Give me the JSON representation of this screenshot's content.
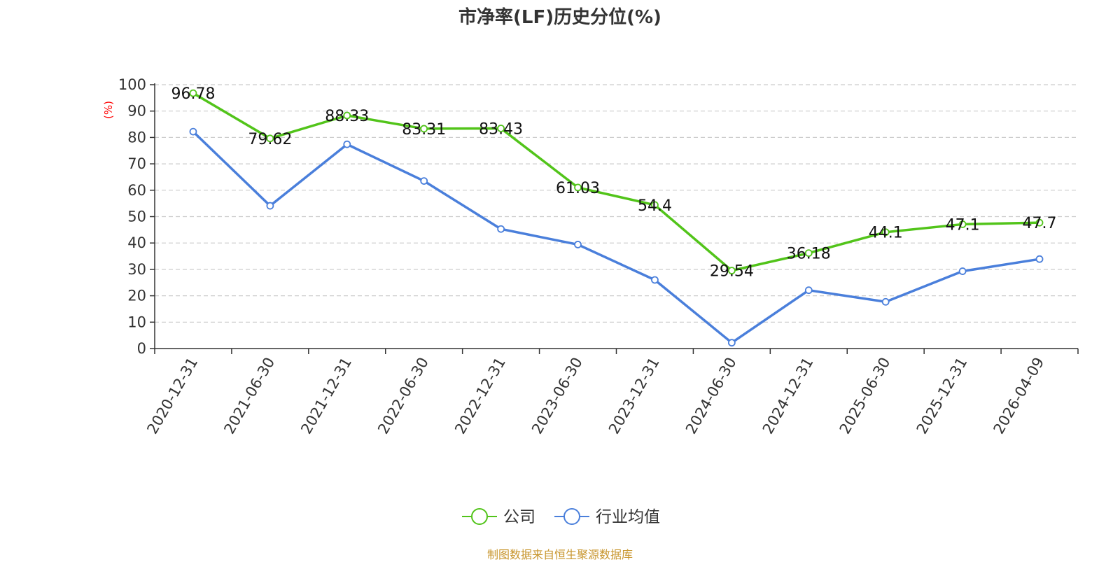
{
  "chart_data": {
    "type": "line",
    "title": "市净率(LF)历史分位(%)",
    "ylabel": "(%)",
    "xlabel": "",
    "ylim": [
      0,
      100
    ],
    "yticks": [
      0,
      10,
      20,
      30,
      40,
      50,
      60,
      70,
      80,
      90,
      100
    ],
    "grid": true,
    "legend_position": "bottom-center",
    "categories": [
      "2020-12-31",
      "2021-06-30",
      "2021-12-31",
      "2022-06-30",
      "2022-12-31",
      "2023-06-30",
      "2023-12-31",
      "2024-06-30",
      "2024-12-31",
      "2025-06-30",
      "2025-12-31",
      "2026-04-09"
    ],
    "series": [
      {
        "name": "公司",
        "color": "#52c41a",
        "values": [
          96.78,
          79.62,
          88.33,
          83.31,
          83.43,
          61.03,
          54.4,
          29.54,
          36.18,
          44.1,
          47.1,
          47.7
        ],
        "data_labels": [
          "96.78",
          "79.62",
          "88.33",
          "83.31",
          "83.43",
          "61.03",
          "54.4",
          "29.54",
          "36.18",
          "44.1",
          "47.1",
          "47.7"
        ]
      },
      {
        "name": "行业均值",
        "color": "#4a7fdb",
        "values": [
          82.2,
          54.1,
          77.4,
          63.5,
          45.3,
          39.4,
          26.0,
          2.2,
          22.1,
          17.7,
          29.3,
          33.9
        ]
      }
    ]
  },
  "source_note": "制图数据来自恒生聚源数据库",
  "colors": {
    "title": "#333333",
    "axis": "#333333",
    "grid": "#cccccc",
    "ylabel": "#ff0000",
    "source_note": "#c8962e"
  }
}
